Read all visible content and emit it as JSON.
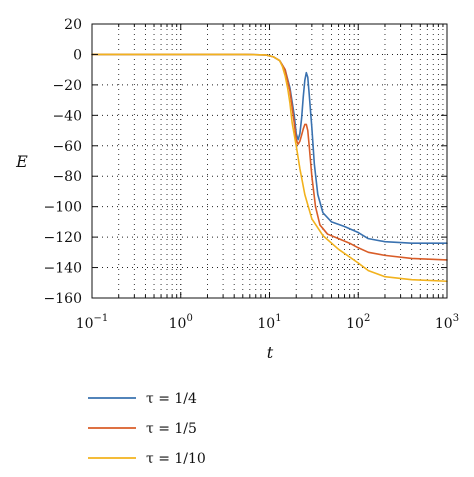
{
  "chart_data": {
    "type": "line",
    "xlabel": "t",
    "ylabel": "E",
    "xscale": "log",
    "xlim": [
      0.1,
      1000
    ],
    "ylim": [
      -160,
      20
    ],
    "grid": true,
    "legend_position": "bottom-left, below plot",
    "x_ticks": [
      {
        "value": 0.1,
        "base": "10",
        "exp": "−1"
      },
      {
        "value": 1,
        "base": "10",
        "exp": "0"
      },
      {
        "value": 10,
        "base": "10",
        "exp": "1"
      },
      {
        "value": 100,
        "base": "10",
        "exp": "2"
      },
      {
        "value": 1000,
        "base": "10",
        "exp": "3"
      }
    ],
    "y_ticks": [
      {
        "value": 20,
        "label": "20"
      },
      {
        "value": 0,
        "label": "0"
      },
      {
        "value": -20,
        "label": "−20"
      },
      {
        "value": -40,
        "label": "−40"
      },
      {
        "value": -60,
        "label": "−60"
      },
      {
        "value": -80,
        "label": "−80"
      },
      {
        "value": -100,
        "label": "−100"
      },
      {
        "value": -120,
        "label": "−120"
      },
      {
        "value": -140,
        "label": "−140"
      },
      {
        "value": -160,
        "label": "−160"
      }
    ],
    "series": [
      {
        "name": "τ = 1/4",
        "color": "#3a72b0",
        "points": [
          [
            0.1,
            0
          ],
          [
            1,
            0
          ],
          [
            5,
            0
          ],
          [
            9,
            -0.3
          ],
          [
            11,
            -1.5
          ],
          [
            13,
            -4
          ],
          [
            15,
            -10
          ],
          [
            17,
            -22
          ],
          [
            19,
            -40
          ],
          [
            20,
            -52
          ],
          [
            21,
            -56
          ],
          [
            22,
            -52
          ],
          [
            23,
            -42
          ],
          [
            24,
            -28
          ],
          [
            25,
            -17
          ],
          [
            26,
            -12
          ],
          [
            27,
            -15
          ],
          [
            28,
            -26
          ],
          [
            30,
            -48
          ],
          [
            32,
            -72
          ],
          [
            35,
            -92
          ],
          [
            40,
            -104
          ],
          [
            50,
            -110
          ],
          [
            70,
            -113
          ],
          [
            100,
            -117
          ],
          [
            130,
            -121
          ],
          [
            200,
            -123
          ],
          [
            400,
            -124
          ],
          [
            1000,
            -124
          ]
        ]
      },
      {
        "name": "τ = 1/5",
        "color": "#d95d28",
        "points": [
          [
            0.1,
            0
          ],
          [
            1,
            0
          ],
          [
            5,
            0
          ],
          [
            9,
            -0.3
          ],
          [
            11,
            -1.5
          ],
          [
            13,
            -4
          ],
          [
            15,
            -10
          ],
          [
            17,
            -24
          ],
          [
            19,
            -45
          ],
          [
            20,
            -56
          ],
          [
            21,
            -59
          ],
          [
            22,
            -57
          ],
          [
            23,
            -53
          ],
          [
            24,
            -49
          ],
          [
            25,
            -46
          ],
          [
            26,
            -46
          ],
          [
            27,
            -50
          ],
          [
            28,
            -60
          ],
          [
            30,
            -80
          ],
          [
            33,
            -100
          ],
          [
            37,
            -112
          ],
          [
            45,
            -118
          ],
          [
            60,
            -121
          ],
          [
            80,
            -124
          ],
          [
            100,
            -127
          ],
          [
            130,
            -130
          ],
          [
            200,
            -132
          ],
          [
            400,
            -134
          ],
          [
            1000,
            -135
          ]
        ]
      },
      {
        "name": "τ = 1/10",
        "color": "#f2b21d",
        "points": [
          [
            0.1,
            0
          ],
          [
            1,
            0
          ],
          [
            5,
            0
          ],
          [
            9,
            -0.3
          ],
          [
            11,
            -1.5
          ],
          [
            13,
            -4
          ],
          [
            14,
            -8
          ],
          [
            15,
            -14
          ],
          [
            16,
            -22
          ],
          [
            17,
            -32
          ],
          [
            18,
            -45
          ],
          [
            20,
            -60
          ],
          [
            22,
            -75
          ],
          [
            25,
            -92
          ],
          [
            30,
            -108
          ],
          [
            40,
            -119
          ],
          [
            60,
            -128
          ],
          [
            100,
            -137
          ],
          [
            130,
            -142
          ],
          [
            200,
            -146
          ],
          [
            400,
            -148
          ],
          [
            1000,
            -149
          ]
        ]
      }
    ]
  }
}
